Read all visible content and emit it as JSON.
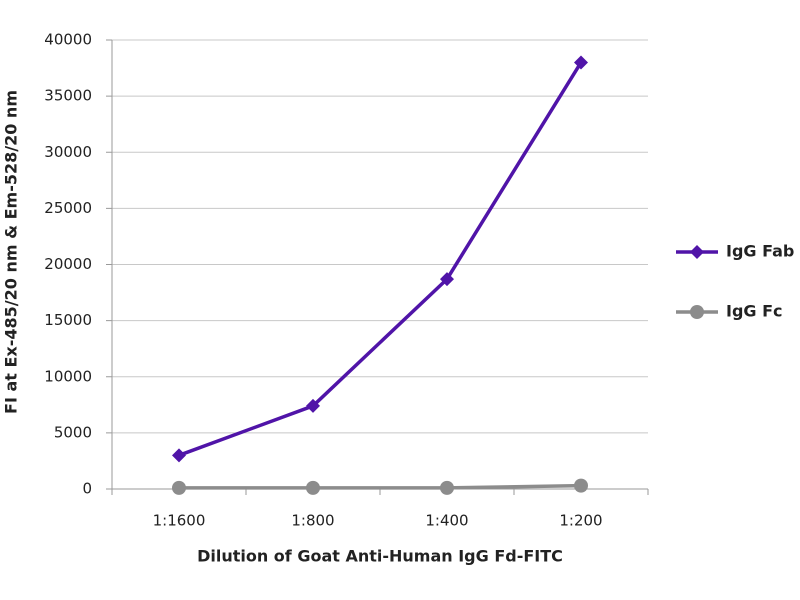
{
  "chart_data": {
    "type": "line",
    "x_label": "Dilution of Goat Anti-Human IgG Fd-FITC",
    "y_label": "FI at Ex-485/20 nm & Em-528/20 nm",
    "categories": [
      "1:1600",
      "1:800",
      "1:400",
      "1:200"
    ],
    "series": [
      {
        "name": "IgG Fab",
        "color": "#5014a8",
        "marker": "diamond",
        "values": [
          3000,
          7400,
          18700,
          38000
        ]
      },
      {
        "name": "IgG Fc",
        "color": "#8c8c8c",
        "marker": "circle",
        "values": [
          100,
          100,
          100,
          300
        ]
      }
    ],
    "ylim": [
      0,
      40000
    ],
    "yticks": [
      0,
      5000,
      10000,
      15000,
      20000,
      25000,
      30000,
      35000,
      40000
    ],
    "grid": true,
    "legend": "right"
  }
}
